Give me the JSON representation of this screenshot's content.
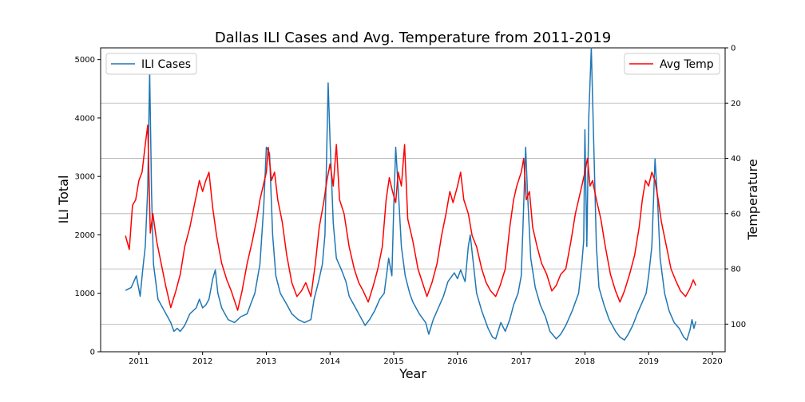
{
  "chart_data": {
    "type": "line",
    "title": "Dallas ILI Cases and Avg. Temperature from 2011-2019",
    "xlabel": "Year",
    "ylabel_left": "ILI Total",
    "ylabel_right": "Temperature",
    "xlim": [
      2010.4,
      2020.2
    ],
    "ylim_left": [
      0,
      5200
    ],
    "ylim_right_inverted": [
      110,
      0
    ],
    "x_ticks": [
      "2011",
      "2012",
      "2013",
      "2014",
      "2015",
      "2016",
      "2017",
      "2018",
      "2019",
      "2020"
    ],
    "y_ticks_left": [
      "0",
      "1000",
      "2000",
      "3000",
      "4000",
      "5000"
    ],
    "y_ticks_right": [
      "0",
      "20",
      "40",
      "60",
      "80",
      "100"
    ],
    "grid": "horizontal (right axis)",
    "legend_left": "top-left",
    "legend_right": "top-right",
    "series": [
      {
        "name": "ILI Cases",
        "axis": "left",
        "color": "#1f77b4",
        "points": [
          [
            2010.79,
            1050
          ],
          [
            2010.88,
            1100
          ],
          [
            2010.96,
            1300
          ],
          [
            2011.02,
            950
          ],
          [
            2011.06,
            1400
          ],
          [
            2011.1,
            1800
          ],
          [
            2011.14,
            2800
          ],
          [
            2011.17,
            4800
          ],
          [
            2011.2,
            2700
          ],
          [
            2011.23,
            1500
          ],
          [
            2011.3,
            900
          ],
          [
            2011.4,
            700
          ],
          [
            2011.5,
            500
          ],
          [
            2011.55,
            350
          ],
          [
            2011.6,
            400
          ],
          [
            2011.65,
            350
          ],
          [
            2011.72,
            450
          ],
          [
            2011.8,
            650
          ],
          [
            2011.9,
            750
          ],
          [
            2011.95,
            900
          ],
          [
            2012.0,
            750
          ],
          [
            2012.05,
            800
          ],
          [
            2012.1,
            900
          ],
          [
            2012.16,
            1250
          ],
          [
            2012.2,
            1400
          ],
          [
            2012.24,
            1000
          ],
          [
            2012.3,
            750
          ],
          [
            2012.4,
            550
          ],
          [
            2012.5,
            500
          ],
          [
            2012.6,
            600
          ],
          [
            2012.7,
            650
          ],
          [
            2012.75,
            800
          ],
          [
            2012.82,
            1000
          ],
          [
            2012.9,
            1500
          ],
          [
            2012.96,
            2500
          ],
          [
            2013.0,
            3500
          ],
          [
            2013.05,
            3400
          ],
          [
            2013.1,
            2000
          ],
          [
            2013.15,
            1300
          ],
          [
            2013.22,
            1000
          ],
          [
            2013.3,
            850
          ],
          [
            2013.4,
            650
          ],
          [
            2013.5,
            550
          ],
          [
            2013.6,
            500
          ],
          [
            2013.7,
            550
          ],
          [
            2013.75,
            900
          ],
          [
            2013.82,
            1200
          ],
          [
            2013.88,
            1500
          ],
          [
            2013.92,
            2000
          ],
          [
            2013.97,
            4600
          ],
          [
            2014.0,
            3600
          ],
          [
            2014.05,
            2200
          ],
          [
            2014.1,
            1600
          ],
          [
            2014.18,
            1400
          ],
          [
            2014.25,
            1200
          ],
          [
            2014.3,
            950
          ],
          [
            2014.4,
            750
          ],
          [
            2014.5,
            550
          ],
          [
            2014.55,
            450
          ],
          [
            2014.62,
            550
          ],
          [
            2014.7,
            700
          ],
          [
            2014.78,
            900
          ],
          [
            2014.85,
            1000
          ],
          [
            2014.92,
            1600
          ],
          [
            2014.97,
            1300
          ],
          [
            2015.0,
            2500
          ],
          [
            2015.03,
            3500
          ],
          [
            2015.07,
            2800
          ],
          [
            2015.12,
            1800
          ],
          [
            2015.18,
            1300
          ],
          [
            2015.25,
            1000
          ],
          [
            2015.3,
            850
          ],
          [
            2015.4,
            650
          ],
          [
            2015.5,
            500
          ],
          [
            2015.55,
            300
          ],
          [
            2015.62,
            550
          ],
          [
            2015.7,
            750
          ],
          [
            2015.78,
            950
          ],
          [
            2015.85,
            1200
          ],
          [
            2015.95,
            1350
          ],
          [
            2016.0,
            1250
          ],
          [
            2016.05,
            1400
          ],
          [
            2016.12,
            1200
          ],
          [
            2016.17,
            1800
          ],
          [
            2016.2,
            2000
          ],
          [
            2016.25,
            1500
          ],
          [
            2016.3,
            1000
          ],
          [
            2016.38,
            700
          ],
          [
            2016.48,
            400
          ],
          [
            2016.55,
            250
          ],
          [
            2016.6,
            220
          ],
          [
            2016.68,
            500
          ],
          [
            2016.75,
            350
          ],
          [
            2016.82,
            550
          ],
          [
            2016.88,
            800
          ],
          [
            2016.95,
            1000
          ],
          [
            2017.0,
            1300
          ],
          [
            2017.03,
            2200
          ],
          [
            2017.07,
            3500
          ],
          [
            2017.1,
            2700
          ],
          [
            2017.15,
            1600
          ],
          [
            2017.22,
            1100
          ],
          [
            2017.3,
            800
          ],
          [
            2017.38,
            600
          ],
          [
            2017.45,
            350
          ],
          [
            2017.55,
            220
          ],
          [
            2017.62,
            300
          ],
          [
            2017.7,
            450
          ],
          [
            2017.8,
            700
          ],
          [
            2017.9,
            1000
          ],
          [
            2017.95,
            1500
          ],
          [
            2017.98,
            1900
          ],
          [
            2018.0,
            3800
          ],
          [
            2018.03,
            1800
          ],
          [
            2018.06,
            4000
          ],
          [
            2018.1,
            5200
          ],
          [
            2018.14,
            3500
          ],
          [
            2018.18,
            1800
          ],
          [
            2018.22,
            1100
          ],
          [
            2018.3,
            800
          ],
          [
            2018.38,
            550
          ],
          [
            2018.48,
            350
          ],
          [
            2018.55,
            250
          ],
          [
            2018.62,
            200
          ],
          [
            2018.68,
            300
          ],
          [
            2018.75,
            450
          ],
          [
            2018.82,
            650
          ],
          [
            2018.9,
            850
          ],
          [
            2018.96,
            1000
          ],
          [
            2019.0,
            1300
          ],
          [
            2019.05,
            1800
          ],
          [
            2019.1,
            3300
          ],
          [
            2019.14,
            2600
          ],
          [
            2019.18,
            1600
          ],
          [
            2019.25,
            1000
          ],
          [
            2019.32,
            700
          ],
          [
            2019.4,
            500
          ],
          [
            2019.48,
            400
          ],
          [
            2019.55,
            250
          ],
          [
            2019.6,
            200
          ],
          [
            2019.65,
            380
          ],
          [
            2019.68,
            550
          ],
          [
            2019.71,
            400
          ],
          [
            2019.74,
            520
          ]
        ]
      },
      {
        "name": "Avg Temp",
        "axis": "right",
        "color": "#ff0000",
        "points": [
          [
            2010.79,
            68
          ],
          [
            2010.85,
            73
          ],
          [
            2010.9,
            57
          ],
          [
            2010.95,
            55
          ],
          [
            2011.0,
            48
          ],
          [
            2011.05,
            45
          ],
          [
            2011.1,
            35
          ],
          [
            2011.14,
            28
          ],
          [
            2011.18,
            67
          ],
          [
            2011.22,
            60
          ],
          [
            2011.28,
            70
          ],
          [
            2011.35,
            78
          ],
          [
            2011.42,
            86
          ],
          [
            2011.5,
            94
          ],
          [
            2011.58,
            88
          ],
          [
            2011.65,
            82
          ],
          [
            2011.72,
            72
          ],
          [
            2011.8,
            65
          ],
          [
            2011.87,
            57
          ],
          [
            2011.95,
            48
          ],
          [
            2012.0,
            52
          ],
          [
            2012.05,
            48
          ],
          [
            2012.1,
            45
          ],
          [
            2012.16,
            58
          ],
          [
            2012.22,
            68
          ],
          [
            2012.3,
            78
          ],
          [
            2012.38,
            84
          ],
          [
            2012.45,
            88
          ],
          [
            2012.55,
            95
          ],
          [
            2012.62,
            88
          ],
          [
            2012.7,
            78
          ],
          [
            2012.78,
            70
          ],
          [
            2012.85,
            62
          ],
          [
            2012.9,
            55
          ],
          [
            2012.95,
            50
          ],
          [
            2013.0,
            45
          ],
          [
            2013.03,
            36
          ],
          [
            2013.08,
            48
          ],
          [
            2013.13,
            45
          ],
          [
            2013.18,
            55
          ],
          [
            2013.25,
            63
          ],
          [
            2013.32,
            75
          ],
          [
            2013.4,
            85
          ],
          [
            2013.48,
            90
          ],
          [
            2013.55,
            88
          ],
          [
            2013.62,
            85
          ],
          [
            2013.7,
            90
          ],
          [
            2013.77,
            78
          ],
          [
            2013.83,
            65
          ],
          [
            2013.9,
            56
          ],
          [
            2013.95,
            48
          ],
          [
            2014.0,
            42
          ],
          [
            2014.05,
            50
          ],
          [
            2014.1,
            35
          ],
          [
            2014.15,
            55
          ],
          [
            2014.22,
            60
          ],
          [
            2014.3,
            72
          ],
          [
            2014.38,
            80
          ],
          [
            2014.45,
            85
          ],
          [
            2014.52,
            88
          ],
          [
            2014.6,
            92
          ],
          [
            2014.68,
            86
          ],
          [
            2014.75,
            80
          ],
          [
            2014.82,
            72
          ],
          [
            2014.88,
            55
          ],
          [
            2014.93,
            47
          ],
          [
            2014.98,
            52
          ],
          [
            2015.03,
            56
          ],
          [
            2015.07,
            45
          ],
          [
            2015.12,
            50
          ],
          [
            2015.17,
            35
          ],
          [
            2015.22,
            62
          ],
          [
            2015.3,
            70
          ],
          [
            2015.38,
            80
          ],
          [
            2015.45,
            85
          ],
          [
            2015.52,
            90
          ],
          [
            2015.6,
            85
          ],
          [
            2015.68,
            78
          ],
          [
            2015.75,
            68
          ],
          [
            2015.82,
            60
          ],
          [
            2015.88,
            52
          ],
          [
            2015.93,
            56
          ],
          [
            2016.0,
            50
          ],
          [
            2016.05,
            45
          ],
          [
            2016.1,
            55
          ],
          [
            2016.17,
            60
          ],
          [
            2016.23,
            68
          ],
          [
            2016.3,
            72
          ],
          [
            2016.38,
            80
          ],
          [
            2016.45,
            85
          ],
          [
            2016.52,
            88
          ],
          [
            2016.6,
            90
          ],
          [
            2016.67,
            86
          ],
          [
            2016.75,
            80
          ],
          [
            2016.82,
            65
          ],
          [
            2016.88,
            55
          ],
          [
            2016.93,
            50
          ],
          [
            2017.0,
            45
          ],
          [
            2017.04,
            40
          ],
          [
            2017.08,
            55
          ],
          [
            2017.13,
            52
          ],
          [
            2017.18,
            65
          ],
          [
            2017.25,
            72
          ],
          [
            2017.32,
            78
          ],
          [
            2017.4,
            82
          ],
          [
            2017.48,
            88
          ],
          [
            2017.55,
            86
          ],
          [
            2017.62,
            82
          ],
          [
            2017.7,
            80
          ],
          [
            2017.78,
            70
          ],
          [
            2017.85,
            60
          ],
          [
            2017.9,
            55
          ],
          [
            2017.95,
            50
          ],
          [
            2018.0,
            45
          ],
          [
            2018.04,
            40
          ],
          [
            2018.08,
            50
          ],
          [
            2018.12,
            48
          ],
          [
            2018.18,
            55
          ],
          [
            2018.25,
            62
          ],
          [
            2018.32,
            72
          ],
          [
            2018.4,
            82
          ],
          [
            2018.48,
            88
          ],
          [
            2018.55,
            92
          ],
          [
            2018.62,
            88
          ],
          [
            2018.7,
            82
          ],
          [
            2018.78,
            75
          ],
          [
            2018.85,
            65
          ],
          [
            2018.9,
            55
          ],
          [
            2018.95,
            48
          ],
          [
            2019.0,
            50
          ],
          [
            2019.05,
            45
          ],
          [
            2019.1,
            48
          ],
          [
            2019.15,
            55
          ],
          [
            2019.2,
            63
          ],
          [
            2019.28,
            72
          ],
          [
            2019.35,
            80
          ],
          [
            2019.42,
            84
          ],
          [
            2019.5,
            88
          ],
          [
            2019.58,
            90
          ],
          [
            2019.65,
            87
          ],
          [
            2019.7,
            84
          ],
          [
            2019.74,
            86
          ]
        ]
      }
    ]
  }
}
